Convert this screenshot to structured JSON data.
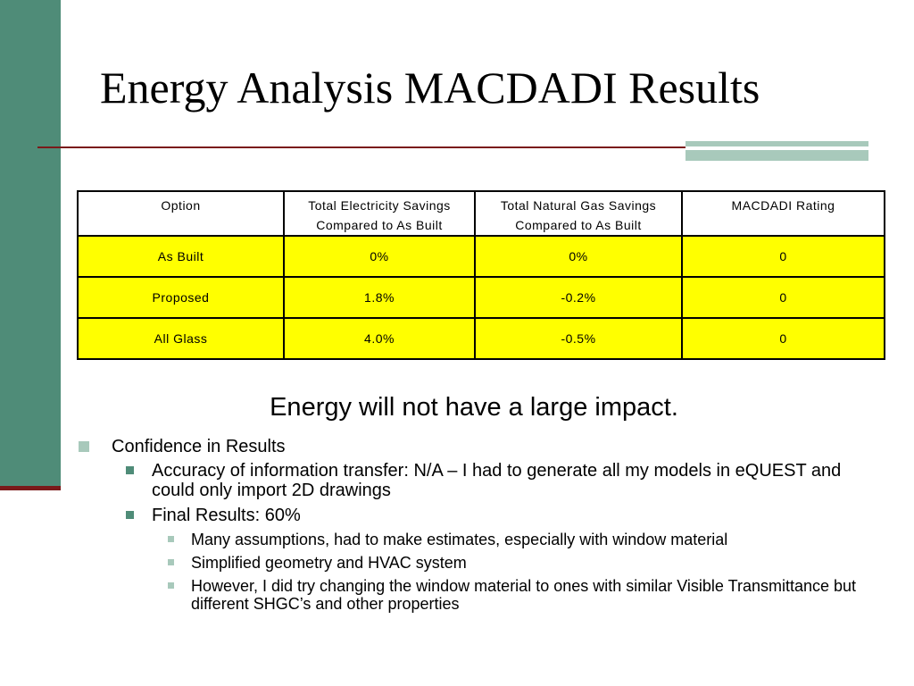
{
  "slide": {
    "title": "Energy Analysis MACDADI Results",
    "summary": "Energy will not have a large impact."
  },
  "table": {
    "headers": [
      [
        "Option"
      ],
      [
        "Total Electricity Savings",
        "Compared to As Built"
      ],
      [
        "Total Natural Gas Savings",
        "Compared to As Built"
      ],
      [
        "MACDADI Rating"
      ]
    ],
    "rows": [
      [
        "As Built",
        "0%",
        "0%",
        "0"
      ],
      [
        "Proposed",
        "1.8%",
        "-0.2%",
        "0"
      ],
      [
        "All Glass",
        "4.0%",
        "-0.5%",
        "0"
      ]
    ]
  },
  "bullets": {
    "confidence": "Confidence in Results",
    "accuracy": "Accuracy of information transfer: N/A – I had to generate all my models in eQUEST and could only import 2D drawings",
    "final": "Final Results: 60%",
    "sub": [
      "Many assumptions, had to make estimates, especially with window material",
      "Simplified geometry and HVAC system",
      "However, I did try changing the window material to ones with similar Visible Transmittance but different SHGC’s and other properties"
    ]
  },
  "colors": {
    "sidebar": "#4f8c78",
    "accent_light": "#a8c9bb",
    "rule": "#7a1a1a",
    "table_fill": "#ffff00"
  }
}
